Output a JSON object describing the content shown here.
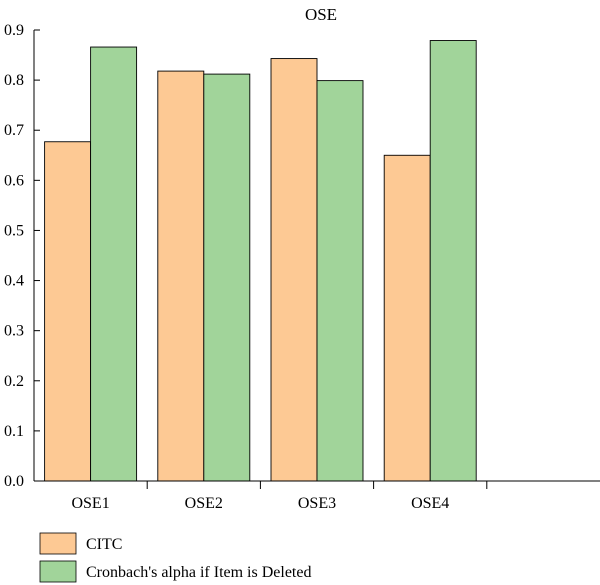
{
  "chart_data": {
    "type": "bar",
    "title": "OSE",
    "xlabel": "",
    "ylabel": "",
    "categories": [
      "OSE1",
      "OSE2",
      "OSE3",
      "OSE4",
      ""
    ],
    "series": [
      {
        "name": "CITC",
        "values": [
          0.677,
          0.818,
          0.843,
          0.65,
          null
        ],
        "color": "#fdc994"
      },
      {
        "name": "Cronbach's alpha if Item is Deleted",
        "values": [
          0.866,
          0.812,
          0.799,
          0.879,
          null
        ],
        "color": "#a1d49a"
      }
    ],
    "ylim": [
      0,
      0.9
    ],
    "yticks": [
      "0.0",
      "0.1",
      "0.2",
      "0.3",
      "0.4",
      "0.5",
      "0.6",
      "0.7",
      "0.8",
      "0.9"
    ],
    "grid": false,
    "legend_position": "bottom-left",
    "axis_color": "#000000"
  }
}
